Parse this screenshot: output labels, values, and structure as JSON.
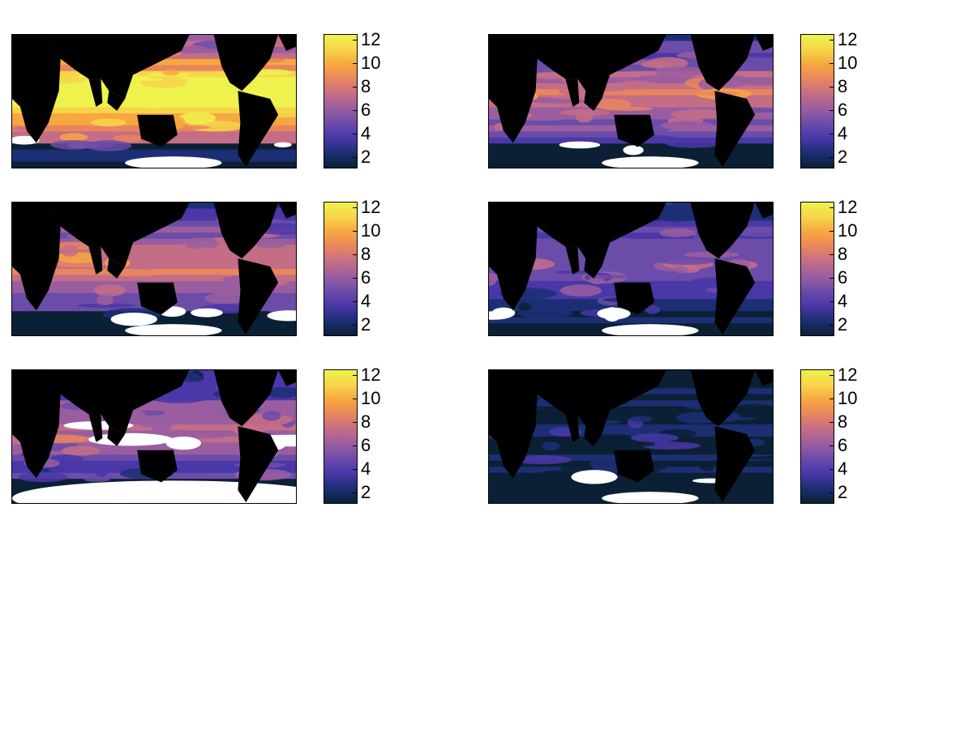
{
  "chart_data": [
    {
      "type": "heatmap",
      "colorbar": {
        "ticks": [
          "2",
          "4",
          "6",
          "8",
          "10",
          "12"
        ],
        "range": [
          1,
          12.5
        ]
      },
      "intensity": 0.95,
      "voids": "small"
    },
    {
      "type": "heatmap",
      "colorbar": {
        "ticks": [
          "2",
          "4",
          "6",
          "8",
          "10",
          "12"
        ],
        "range": [
          1,
          12.5
        ]
      },
      "intensity": 0.55,
      "voids": "small"
    },
    {
      "type": "heatmap",
      "colorbar": {
        "ticks": [
          "2",
          "4",
          "6",
          "8",
          "10",
          "12"
        ],
        "range": [
          1,
          12.5
        ]
      },
      "intensity": 0.55,
      "voids": "medium"
    },
    {
      "type": "heatmap",
      "colorbar": {
        "ticks": [
          "2",
          "4",
          "6",
          "8",
          "10",
          "12"
        ],
        "range": [
          1,
          12.5
        ]
      },
      "intensity": 0.35,
      "voids": "medium"
    },
    {
      "type": "heatmap",
      "colorbar": {
        "ticks": [
          "2",
          "4",
          "6",
          "8",
          "10",
          "12"
        ],
        "range": [
          1,
          12.5
        ]
      },
      "intensity": 0.45,
      "voids": "large"
    },
    {
      "type": "heatmap",
      "colorbar": {
        "ticks": [
          "2",
          "4",
          "6",
          "8",
          "10",
          "12"
        ],
        "range": [
          1,
          12.5
        ]
      },
      "intensity": 0.12,
      "voids": "small"
    }
  ],
  "colormap": [
    "#0b2035",
    "#1c2f74",
    "#4a37a8",
    "#6b4ca8",
    "#9a5ea0",
    "#c46d87",
    "#e9855e",
    "#f7a73f",
    "#f6d54a",
    "#eef24d"
  ]
}
